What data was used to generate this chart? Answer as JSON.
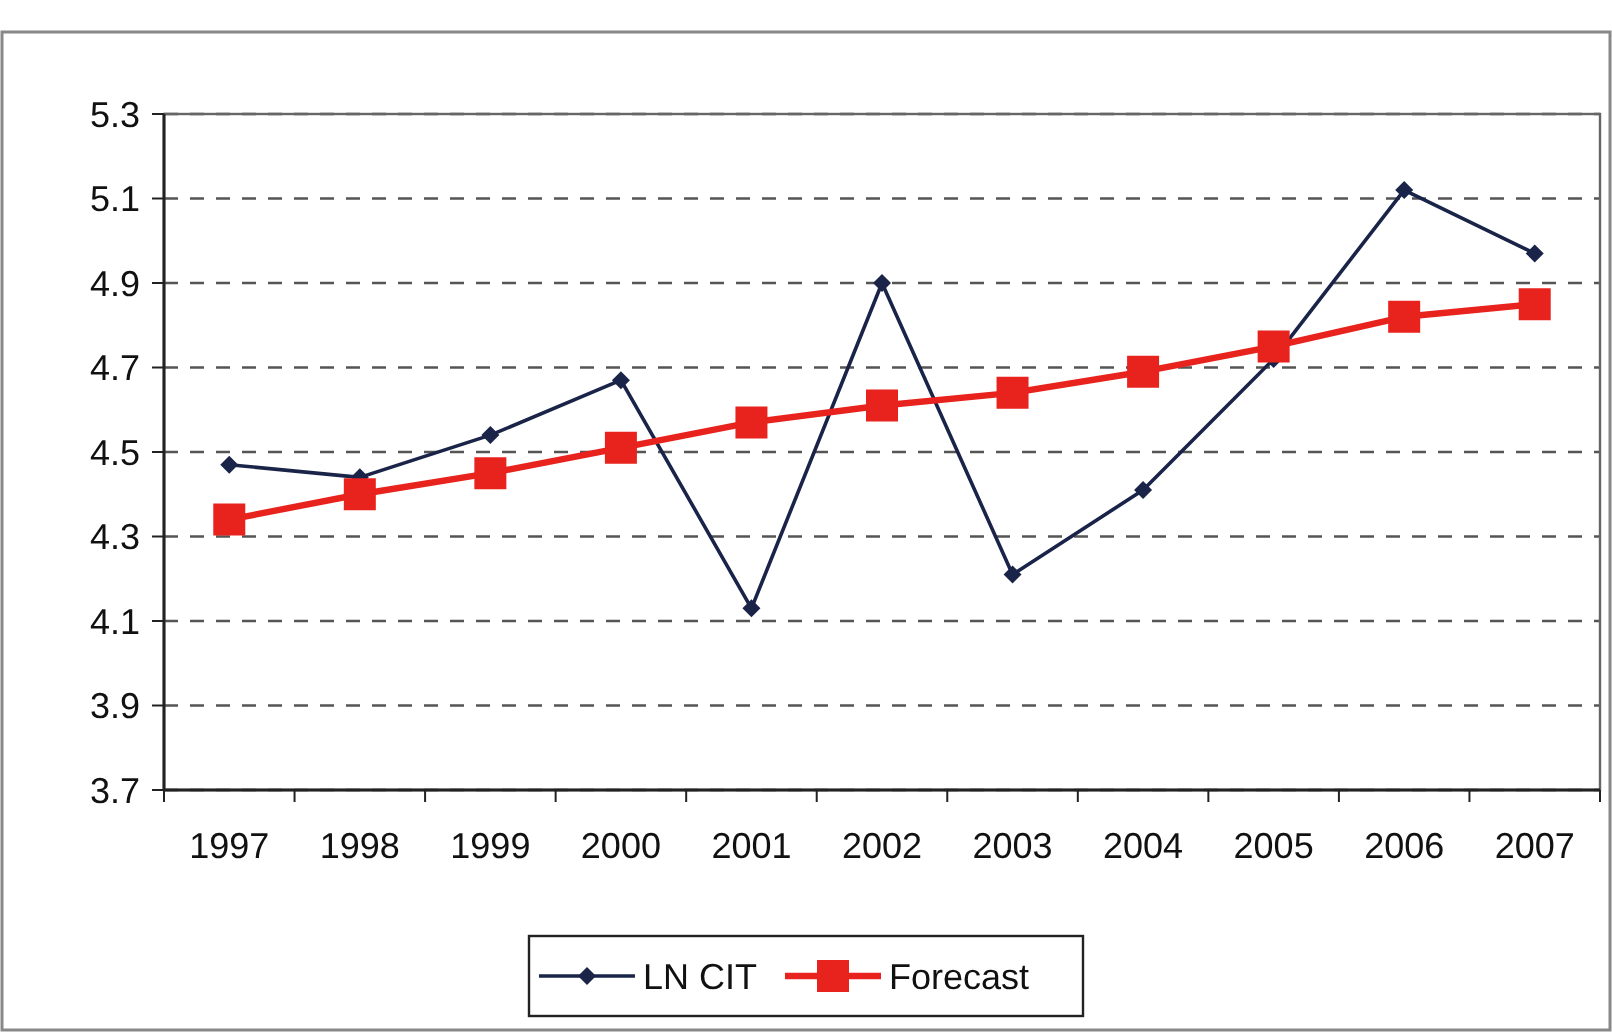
{
  "chart_data": {
    "type": "line",
    "categories": [
      "1997",
      "1998",
      "1999",
      "2000",
      "2001",
      "2002",
      "2003",
      "2004",
      "2005",
      "2006",
      "2007"
    ],
    "series": [
      {
        "name": "LN CIT",
        "color": "#1a2448",
        "marker": "diamond",
        "values": [
          4.47,
          4.44,
          4.54,
          4.67,
          4.13,
          4.9,
          4.21,
          4.41,
          4.72,
          5.12,
          4.97
        ]
      },
      {
        "name": "Forecast",
        "color": "#e8221c",
        "marker": "square",
        "values": [
          4.34,
          4.4,
          4.45,
          4.51,
          4.57,
          4.61,
          4.64,
          4.69,
          4.75,
          4.82,
          4.85
        ]
      }
    ],
    "ylim": [
      3.7,
      5.3
    ],
    "yticks": [
      {
        "value": 3.7,
        "label": "3.7"
      },
      {
        "value": 3.9,
        "label": "3.9"
      },
      {
        "value": 4.1,
        "label": "4.1"
      },
      {
        "value": 4.3,
        "label": "4.3"
      },
      {
        "value": 4.5,
        "label": "4.5"
      },
      {
        "value": 4.7,
        "label": "4.7"
      },
      {
        "value": 4.9,
        "label": "4.9"
      },
      {
        "value": 5.1,
        "label": "5.1"
      },
      {
        "value": 5.3,
        "label": "5.3"
      }
    ],
    "grid": "y",
    "line_style": "solid",
    "legend": "bottom"
  }
}
